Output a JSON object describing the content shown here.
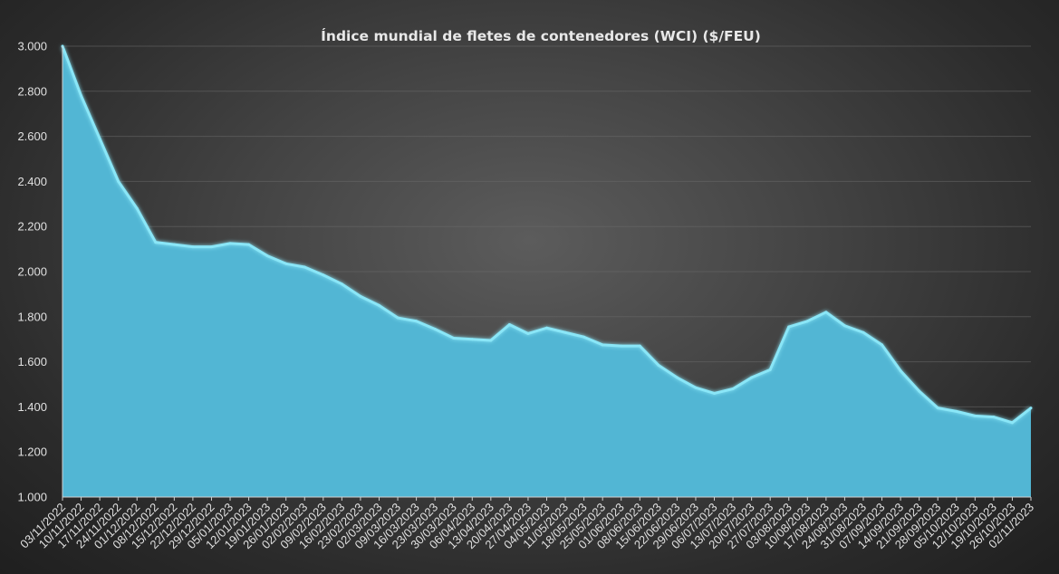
{
  "chart_data": {
    "type": "area",
    "title": "Índice mundial de fletes de contenedores (WCI) ($/FEU)",
    "xlabel": "",
    "ylabel": "",
    "ylim": [
      1000,
      3000
    ],
    "yticks": [
      1000,
      1200,
      1400,
      1600,
      1800,
      2000,
      2200,
      2400,
      2600,
      2800,
      3000
    ],
    "ytick_labels": [
      "1.000",
      "1.200",
      "1.400",
      "1.600",
      "1.800",
      "2.000",
      "2.200",
      "2.400",
      "2.600",
      "2.800",
      "3.000"
    ],
    "grid": true,
    "legend": "none",
    "colors": {
      "fill": "#52b6d4",
      "line": "#8ae6f7",
      "background": "#3c3c3c",
      "text": "#e0e0e0"
    },
    "categories": [
      "03/11/2022",
      "10/11/2022",
      "17/11/2022",
      "24/11/2022",
      "01/12/2022",
      "08/12/2022",
      "15/12/2022",
      "22/12/2022",
      "29/12/2022",
      "05/01/2023",
      "12/01/2023",
      "19/01/2023",
      "26/01/2023",
      "02/02/2023",
      "09/02/2023",
      "16/02/2023",
      "23/02/2023",
      "02/03/2023",
      "09/03/2023",
      "16/03/2023",
      "23/03/2023",
      "30/03/2023",
      "06/04/2023",
      "13/04/2023",
      "20/04/2023",
      "27/04/2023",
      "04/05/2023",
      "11/05/2023",
      "18/05/2023",
      "25/05/2023",
      "01/06/2023",
      "08/06/2023",
      "15/06/2023",
      "22/06/2023",
      "29/06/2023",
      "06/07/2023",
      "13/07/2023",
      "20/07/2023",
      "27/07/2023",
      "03/08/2023",
      "10/08/2023",
      "17/08/2023",
      "24/08/2023",
      "31/08/2023",
      "07/09/2023",
      "14/09/2023",
      "21/09/2023",
      "28/09/2023",
      "05/10/2023",
      "12/10/2023",
      "19/10/2023",
      "26/10/2023",
      "02/11/2023"
    ],
    "values": [
      3000,
      2780,
      2590,
      2400,
      2280,
      2130,
      2120,
      2110,
      2110,
      2125,
      2120,
      2070,
      2035,
      2020,
      1985,
      1945,
      1890,
      1850,
      1795,
      1780,
      1745,
      1705,
      1700,
      1695,
      1765,
      1725,
      1750,
      1730,
      1710,
      1675,
      1670,
      1670,
      1585,
      1530,
      1485,
      1460,
      1480,
      1530,
      1565,
      1755,
      1780,
      1820,
      1760,
      1730,
      1675,
      1560,
      1470,
      1395,
      1380,
      1360,
      1355,
      1330,
      1395
    ]
  }
}
